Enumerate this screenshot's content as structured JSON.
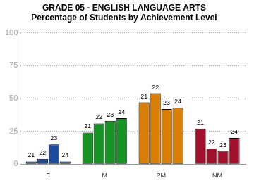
{
  "chart_data": {
    "type": "bar",
    "title": [
      "GRADE 05 - ENGLISH LANGUAGE ARTS",
      "Percentage of Students by Achievement Level"
    ],
    "categories": [
      "E",
      "M",
      "PM",
      "NM"
    ],
    "colors": [
      "#1d4a9a",
      "#179326",
      "#d97f06",
      "#a3102b"
    ],
    "series": [
      {
        "name": "21",
        "values": [
          2,
          24,
          47,
          27
        ]
      },
      {
        "name": "22",
        "values": [
          4,
          31,
          54,
          12
        ]
      },
      {
        "name": "23",
        "values": [
          15,
          33,
          42,
          10
        ]
      },
      {
        "name": "24",
        "values": [
          2,
          35,
          43,
          20
        ]
      }
    ],
    "ylim": [
      0,
      100
    ],
    "yticks": [
      0,
      25,
      50,
      75,
      100
    ],
    "grid": true
  }
}
